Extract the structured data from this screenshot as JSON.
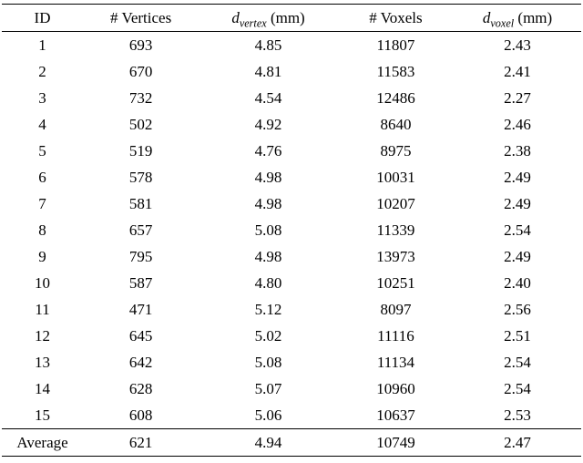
{
  "table": {
    "headers": {
      "id": "ID",
      "vertices": "# Vertices",
      "d_vertex": {
        "symbol": "d",
        "sub": "vertex",
        "unit": " (mm)"
      },
      "voxels": "# Voxels",
      "d_voxel": {
        "symbol": "d",
        "sub": "voxel",
        "unit": " (mm)"
      }
    },
    "rows": [
      [
        "1",
        "693",
        "4.85",
        "11807",
        "2.43"
      ],
      [
        "2",
        "670",
        "4.81",
        "11583",
        "2.41"
      ],
      [
        "3",
        "732",
        "4.54",
        "12486",
        "2.27"
      ],
      [
        "4",
        "502",
        "4.92",
        "8640",
        "2.46"
      ],
      [
        "5",
        "519",
        "4.76",
        "8975",
        "2.38"
      ],
      [
        "6",
        "578",
        "4.98",
        "10031",
        "2.49"
      ],
      [
        "7",
        "581",
        "4.98",
        "10207",
        "2.49"
      ],
      [
        "8",
        "657",
        "5.08",
        "11339",
        "2.54"
      ],
      [
        "9",
        "795",
        "4.98",
        "13973",
        "2.49"
      ],
      [
        "10",
        "587",
        "4.80",
        "10251",
        "2.40"
      ],
      [
        "11",
        "471",
        "5.12",
        "8097",
        "2.56"
      ],
      [
        "12",
        "645",
        "5.02",
        "11116",
        "2.51"
      ],
      [
        "13",
        "642",
        "5.08",
        "11134",
        "2.54"
      ],
      [
        "14",
        "628",
        "5.07",
        "10960",
        "2.54"
      ],
      [
        "15",
        "608",
        "5.06",
        "10637",
        "2.53"
      ]
    ],
    "average_row": [
      "Average",
      "621",
      "4.94",
      "10749",
      "2.47"
    ]
  }
}
